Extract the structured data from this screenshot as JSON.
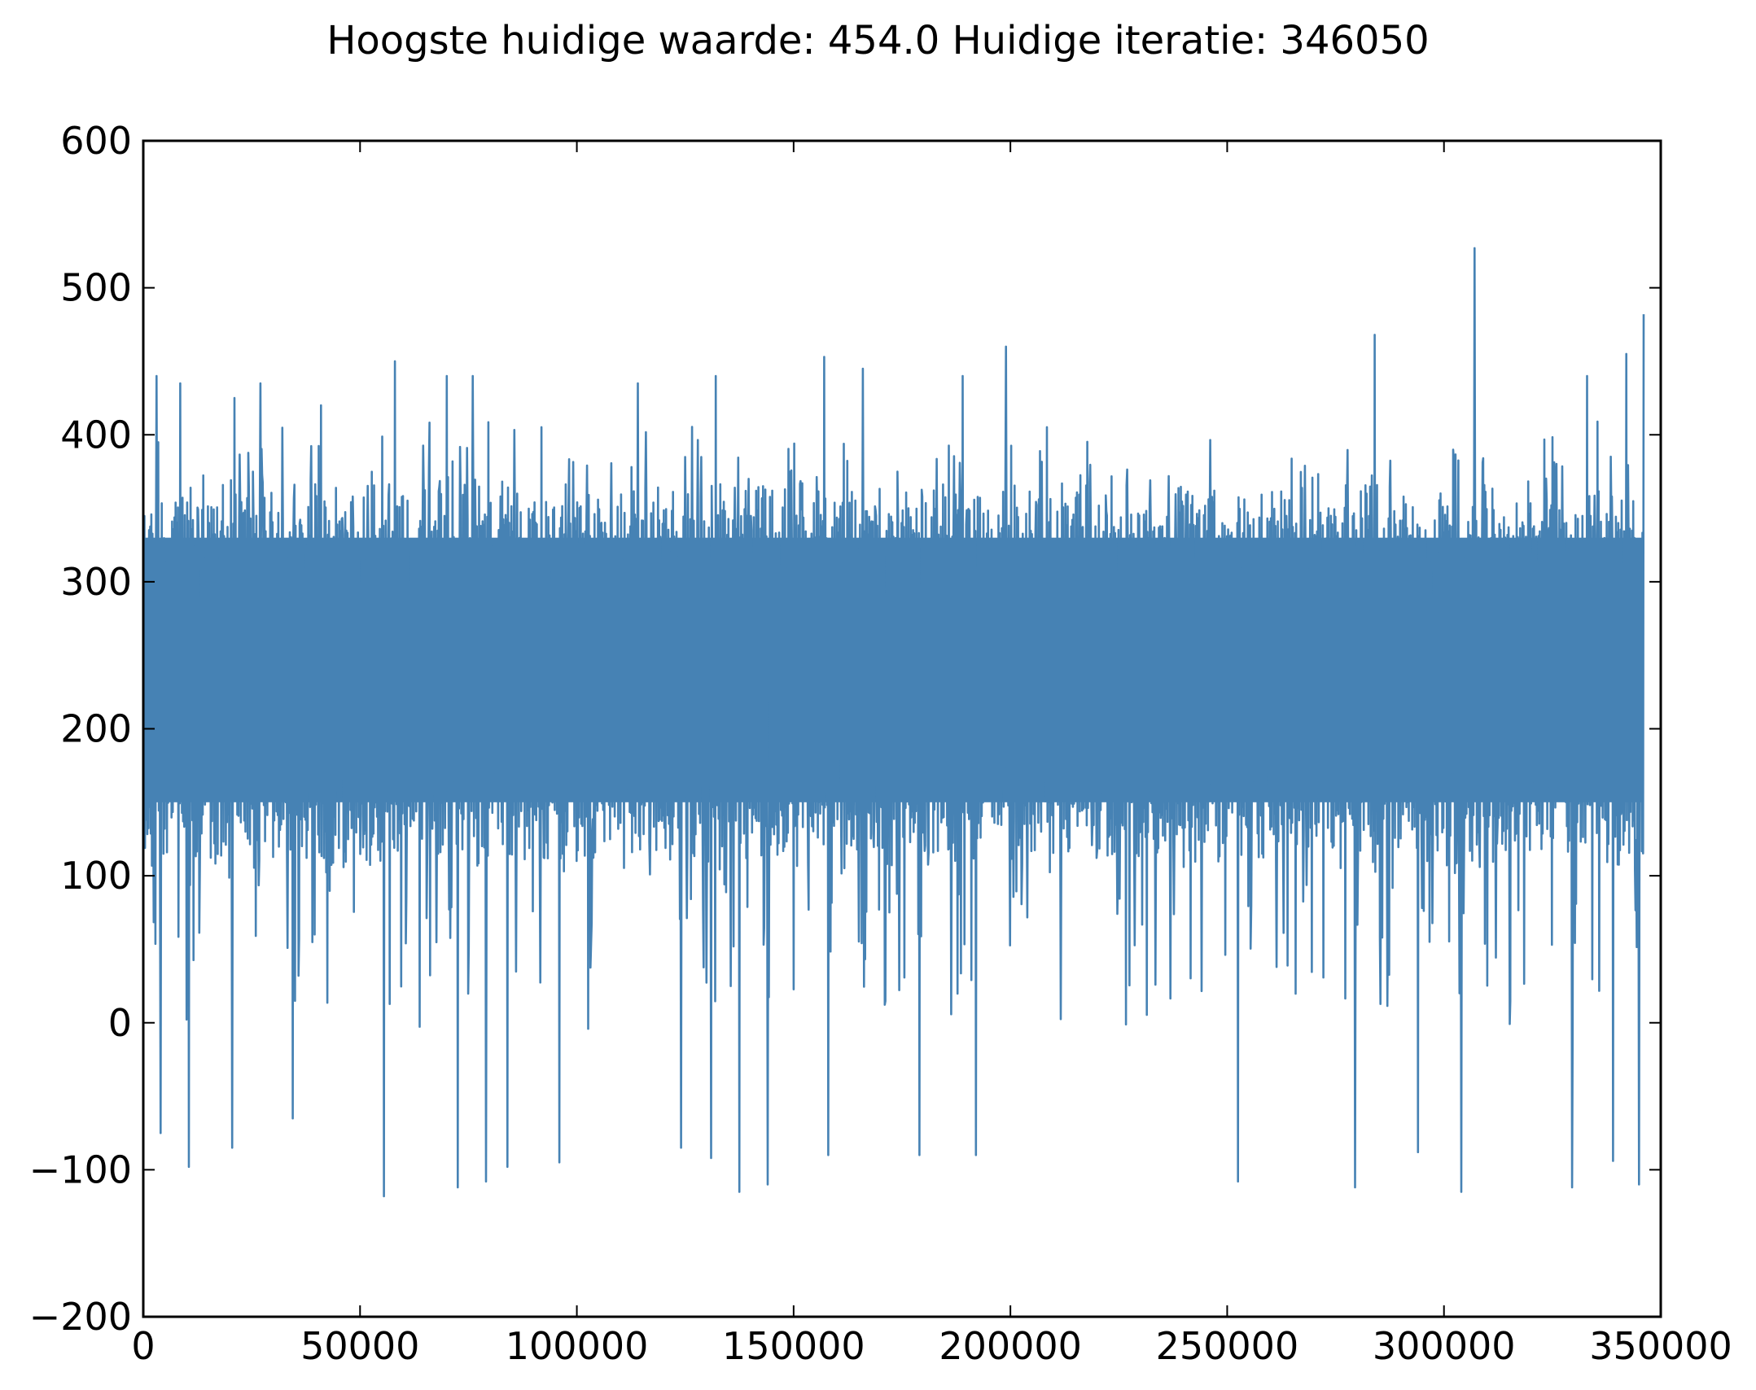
{
  "chart_data": {
    "type": "line",
    "title": "Hoogste huidige waarde: 454.0 Huidige iteratie: 346050",
    "xlabel": "",
    "ylabel": "",
    "xlim": [
      0,
      350000
    ],
    "ylim": [
      -200,
      600
    ],
    "x_ticks": [
      0,
      50000,
      100000,
      150000,
      200000,
      250000,
      300000,
      350000
    ],
    "x_tick_labels": [
      "0",
      "50000",
      "100000",
      "150000",
      "200000",
      "250000",
      "300000",
      "350000"
    ],
    "y_ticks": [
      -200,
      -100,
      0,
      100,
      200,
      300,
      400,
      500,
      600
    ],
    "y_tick_labels": [
      "−200",
      "−100",
      "0",
      "100",
      "200",
      "300",
      "400",
      "500",
      "600"
    ],
    "grid": false,
    "legend": "none",
    "series": [
      {
        "color": "#4682b4",
        "x_range": [
          0,
          346050
        ],
        "band": {
          "upper": [
            330,
            370
          ],
          "lower": [
            100,
            150
          ],
          "center": 240
        },
        "peaks": [
          [
            3000,
            440
          ],
          [
            8500,
            435
          ],
          [
            21000,
            425
          ],
          [
            27000,
            435
          ],
          [
            41000,
            420
          ],
          [
            58000,
            450
          ],
          [
            70000,
            440
          ],
          [
            76000,
            440
          ],
          [
            114000,
            435
          ],
          [
            132000,
            440
          ],
          [
            157000,
            453
          ],
          [
            166000,
            445
          ],
          [
            189000,
            440
          ],
          [
            199000,
            460
          ],
          [
            284000,
            468
          ],
          [
            307000,
            527
          ],
          [
            333000,
            440
          ],
          [
            342000,
            455
          ],
          [
            346000,
            482
          ]
        ],
        "troughs": [
          [
            4000,
            -75
          ],
          [
            10500,
            -98
          ],
          [
            20500,
            -85
          ],
          [
            34500,
            -65
          ],
          [
            55500,
            -118
          ],
          [
            72500,
            -112
          ],
          [
            79000,
            -108
          ],
          [
            84000,
            -98
          ],
          [
            96000,
            -95
          ],
          [
            124000,
            -85
          ],
          [
            131000,
            -92
          ],
          [
            137500,
            -115
          ],
          [
            144000,
            -110
          ],
          [
            158000,
            -90
          ],
          [
            179000,
            -90
          ],
          [
            192000,
            -90
          ],
          [
            252500,
            -108
          ],
          [
            279500,
            -112
          ],
          [
            294000,
            -88
          ],
          [
            304000,
            -115
          ],
          [
            329500,
            -112
          ],
          [
            339000,
            -94
          ],
          [
            345000,
            -110
          ]
        ]
      }
    ]
  }
}
